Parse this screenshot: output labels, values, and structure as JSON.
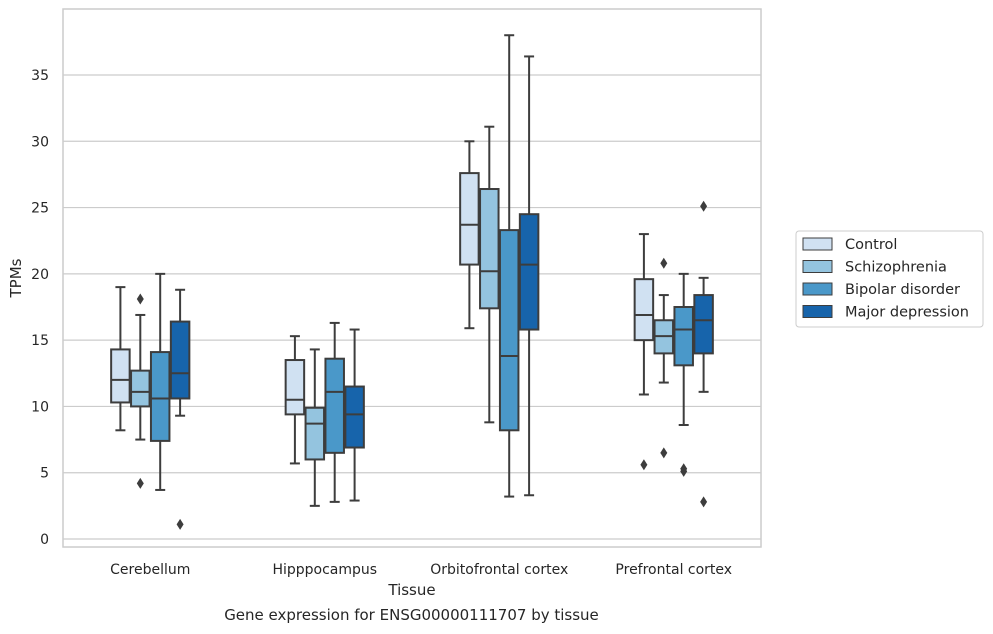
{
  "caption": "Gene expression for ENSG00000111707 by tissue",
  "chart_data": {
    "type": "box",
    "xlabel": "Tissue",
    "ylabel": "TPMs",
    "ylim": [
      -0.5,
      39.5
    ],
    "yticks": [
      0,
      5,
      10,
      15,
      20,
      25,
      30,
      35
    ],
    "grid": "horizontal",
    "legend_position": "right",
    "categories": [
      "Cerebellum",
      "Hipppocampus",
      "Orbitofrontal cortex",
      "Prefrontal cortex"
    ],
    "series": [
      {
        "name": "Control",
        "color": "#d0e1f2",
        "boxes": [
          {
            "whislo": 8.2,
            "q1": 10.3,
            "med": 12.0,
            "q3": 14.3,
            "whishi": 19.0,
            "fliers": []
          },
          {
            "whislo": 5.7,
            "q1": 9.4,
            "med": 10.5,
            "q3": 13.5,
            "whishi": 15.3,
            "fliers": []
          },
          {
            "whislo": 15.9,
            "q1": 20.7,
            "med": 23.7,
            "q3": 27.6,
            "whishi": 30.0,
            "fliers": []
          },
          {
            "whislo": 10.9,
            "q1": 15.0,
            "med": 16.9,
            "q3": 19.6,
            "whishi": 23.0,
            "fliers": [
              5.6
            ]
          }
        ]
      },
      {
        "name": "Schizophrenia",
        "color": "#94c4df",
        "boxes": [
          {
            "whislo": 7.5,
            "q1": 10.0,
            "med": 11.1,
            "q3": 12.7,
            "whishi": 16.9,
            "fliers": [
              18.1,
              4.2
            ]
          },
          {
            "whislo": 2.5,
            "q1": 6.0,
            "med": 8.7,
            "q3": 9.9,
            "whishi": 14.3,
            "fliers": []
          },
          {
            "whislo": 8.8,
            "q1": 17.4,
            "med": 20.2,
            "q3": 26.4,
            "whishi": 31.1,
            "fliers": []
          },
          {
            "whislo": 11.8,
            "q1": 14.0,
            "med": 15.3,
            "q3": 16.5,
            "whishi": 18.4,
            "fliers": [
              20.8,
              6.5
            ]
          }
        ]
      },
      {
        "name": "Bipolar disorder",
        "color": "#4a98c9",
        "boxes": [
          {
            "whislo": 3.7,
            "q1": 7.4,
            "med": 10.6,
            "q3": 14.1,
            "whishi": 20.0,
            "fliers": []
          },
          {
            "whislo": 2.8,
            "q1": 6.5,
            "med": 11.1,
            "q3": 13.6,
            "whishi": 16.3,
            "fliers": []
          },
          {
            "whislo": 3.2,
            "q1": 8.2,
            "med": 13.8,
            "q3": 23.3,
            "whishi": 38.0,
            "fliers": []
          },
          {
            "whislo": 8.6,
            "q1": 13.1,
            "med": 15.8,
            "q3": 17.5,
            "whishi": 20.0,
            "fliers": [
              5.3,
              5.1
            ]
          }
        ]
      },
      {
        "name": "Major depression",
        "color": "#1764ab",
        "boxes": [
          {
            "whislo": 9.3,
            "q1": 10.6,
            "med": 12.5,
            "q3": 16.4,
            "whishi": 18.8,
            "fliers": [
              1.1
            ]
          },
          {
            "whislo": 2.9,
            "q1": 6.9,
            "med": 9.4,
            "q3": 11.5,
            "whishi": 15.8,
            "fliers": []
          },
          {
            "whislo": 3.3,
            "q1": 15.8,
            "med": 20.7,
            "q3": 24.5,
            "whishi": 36.4,
            "fliers": []
          },
          {
            "whislo": 11.1,
            "q1": 14.0,
            "med": 16.5,
            "q3": 18.4,
            "whishi": 19.7,
            "fliers": [
              25.1,
              2.8
            ]
          }
        ]
      }
    ]
  }
}
